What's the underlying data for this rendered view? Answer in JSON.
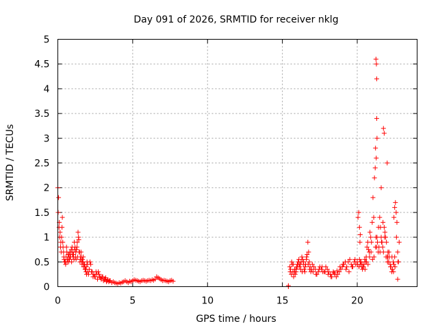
{
  "chart_data": {
    "type": "scatter",
    "title": "Day 091 of 2026, SRMTID for receiver nklg",
    "xlabel": "GPS time / hours",
    "ylabel": "SRMTID / TECUs",
    "xlim": [
      0,
      24
    ],
    "ylim": [
      0,
      5
    ],
    "x_ticks": [
      0,
      5,
      10,
      15,
      20
    ],
    "y_ticks": [
      0,
      0.5,
      1,
      1.5,
      2,
      2.5,
      3,
      3.5,
      4,
      4.5,
      5
    ],
    "x_tick_labels": [
      "0",
      "5",
      "10",
      "15",
      "20"
    ],
    "y_tick_labels": [
      "0",
      "0.5",
      "1",
      "1.5",
      "2",
      "2.5",
      "3",
      "3.5",
      "4",
      "4.5",
      "5"
    ],
    "grid": true,
    "marker": "plus",
    "color": "#ff0000",
    "series": [
      {
        "name": "SRMTID",
        "x": [
          0.0,
          0.05,
          0.1,
          0.15,
          0.2,
          0.25,
          0.3,
          0.35,
          0.4,
          0.45,
          0.5,
          0.55,
          0.6,
          0.65,
          0.7,
          0.75,
          0.8,
          0.85,
          0.9,
          0.95,
          1.0,
          1.05,
          1.1,
          1.15,
          1.2,
          1.25,
          1.3,
          1.35,
          1.4,
          1.45,
          1.5,
          1.55,
          1.6,
          1.65,
          1.7,
          1.75,
          1.8,
          1.85,
          1.9,
          1.95,
          2.0,
          2.1,
          2.2,
          2.3,
          2.4,
          2.5,
          2.6,
          2.7,
          2.8,
          2.9,
          3.0,
          3.1,
          3.2,
          3.3,
          3.4,
          3.5,
          3.6,
          3.7,
          3.8,
          3.9,
          4.0,
          4.1,
          4.2,
          4.3,
          4.4,
          4.5,
          4.6,
          4.7,
          4.8,
          4.9,
          5.0,
          5.1,
          5.2,
          5.3,
          5.4,
          5.5,
          5.6,
          5.7,
          5.8,
          5.9,
          6.0,
          6.1,
          6.2,
          6.3,
          6.4,
          6.5,
          6.6,
          6.7,
          6.8,
          6.9,
          7.0,
          7.1,
          7.2,
          7.3,
          7.4,
          7.5,
          7.6,
          7.7,
          0.02,
          0.08,
          0.12,
          0.18,
          0.22,
          0.28,
          0.33,
          0.38,
          0.42,
          0.48,
          0.52,
          0.58,
          0.62,
          0.68,
          0.72,
          0.78,
          0.82,
          0.88,
          0.92,
          0.98,
          1.02,
          1.08,
          1.12,
          1.18,
          1.22,
          1.28,
          1.32,
          1.38,
          1.42,
          1.48,
          1.52,
          1.58,
          1.62,
          1.68,
          1.72,
          1.78,
          1.82,
          1.88,
          1.92,
          1.98,
          2.05,
          2.15,
          2.25,
          2.35,
          2.45,
          2.55,
          2.65,
          2.75,
          2.85,
          2.95,
          3.05,
          3.15,
          3.25,
          3.35,
          3.45,
          15.4,
          15.4,
          15.5,
          15.55,
          15.6,
          15.65,
          15.7,
          15.75,
          15.8,
          15.85,
          15.9,
          15.95,
          16.0,
          16.05,
          16.1,
          16.15,
          16.2,
          16.25,
          16.3,
          16.35,
          16.4,
          16.45,
          16.5,
          16.55,
          16.6,
          16.65,
          16.7,
          16.75,
          16.8,
          16.85,
          16.9,
          16.95,
          17.0,
          17.1,
          17.2,
          17.3,
          17.4,
          17.5,
          17.6,
          17.7,
          17.8,
          17.9,
          18.0,
          18.1,
          18.2,
          18.3,
          18.4,
          18.5,
          18.6,
          18.7,
          18.8,
          18.9,
          19.0,
          19.1,
          19.2,
          19.3,
          19.4,
          19.5,
          19.6,
          19.7,
          19.8,
          19.9,
          20.0,
          20.05,
          20.1,
          20.15,
          20.2,
          20.25,
          20.3,
          20.35,
          20.4,
          20.45,
          20.5,
          20.55,
          20.6,
          20.65,
          20.7,
          20.75,
          20.8,
          20.85,
          20.9,
          20.95,
          21.0,
          21.05,
          21.1,
          21.15,
          21.2,
          21.25,
          21.3,
          21.35,
          21.4,
          21.45,
          21.5,
          21.55,
          21.6,
          21.65,
          21.7,
          21.75,
          21.8,
          21.85,
          21.9,
          21.95,
          22.0,
          22.05,
          22.1,
          22.15,
          22.2,
          22.25,
          22.3,
          22.35,
          22.4,
          22.45,
          22.5,
          22.55,
          22.6,
          22.65,
          22.7,
          22.75,
          22.8,
          15.52,
          15.62,
          15.72,
          15.82,
          15.92,
          16.02,
          16.12,
          16.22,
          16.32,
          16.42,
          16.52,
          16.62,
          16.72,
          16.82,
          17.05,
          17.25,
          17.45,
          17.65,
          17.85,
          18.05,
          18.25,
          18.45,
          18.65,
          18.85,
          19.05,
          19.25,
          19.45,
          19.65,
          19.85,
          20.02,
          20.12,
          20.22,
          20.32,
          20.42,
          20.52,
          20.62,
          20.72,
          20.82,
          20.92,
          21.02,
          21.12,
          21.22,
          21.32,
          21.42,
          21.52,
          21.62,
          21.72,
          21.82,
          21.92,
          22.02,
          22.12,
          22.22,
          22.32,
          22.42,
          22.52,
          22.62,
          22.72,
          21.25,
          21.28,
          21.3,
          21.3,
          21.32,
          21.27,
          21.22,
          21.75,
          21.8,
          22.0,
          21.6,
          22.5,
          22.45,
          20.15,
          20.2,
          20.18,
          22.7,
          22.05
        ],
        "y": [
          2.0,
          1.8,
          1.3,
          1.1,
          0.9,
          1.0,
          1.4,
          0.8,
          0.6,
          0.5,
          0.5,
          0.6,
          0.7,
          0.55,
          0.6,
          0.65,
          0.7,
          0.6,
          0.75,
          0.8,
          0.7,
          0.65,
          0.9,
          0.8,
          0.7,
          0.75,
          0.9,
          1.1,
          0.95,
          0.7,
          0.6,
          0.7,
          0.5,
          0.55,
          0.6,
          0.45,
          0.4,
          0.35,
          0.4,
          0.5,
          0.3,
          0.35,
          0.45,
          0.3,
          0.25,
          0.2,
          0.25,
          0.3,
          0.2,
          0.15,
          0.2,
          0.15,
          0.18,
          0.12,
          0.1,
          0.12,
          0.08,
          0.1,
          0.08,
          0.07,
          0.06,
          0.08,
          0.07,
          0.09,
          0.1,
          0.12,
          0.1,
          0.08,
          0.11,
          0.1,
          0.12,
          0.14,
          0.13,
          0.12,
          0.11,
          0.1,
          0.12,
          0.13,
          0.12,
          0.11,
          0.12,
          0.13,
          0.12,
          0.14,
          0.13,
          0.15,
          0.2,
          0.18,
          0.16,
          0.14,
          0.12,
          0.13,
          0.12,
          0.11,
          0.1,
          0.12,
          0.13,
          0.11,
          1.5,
          1.2,
          1.0,
          0.8,
          0.7,
          1.2,
          0.9,
          0.7,
          0.55,
          0.5,
          0.45,
          0.8,
          0.5,
          0.65,
          0.5,
          0.55,
          0.6,
          0.7,
          0.5,
          0.65,
          0.6,
          0.55,
          0.75,
          0.6,
          0.55,
          0.8,
          0.6,
          1.0,
          0.7,
          0.5,
          0.55,
          0.6,
          0.45,
          0.5,
          0.4,
          0.45,
          0.35,
          0.3,
          0.25,
          0.45,
          0.25,
          0.5,
          0.3,
          0.2,
          0.2,
          0.3,
          0.15,
          0.25,
          0.18,
          0.2,
          0.12,
          0.15,
          0.1,
          0.14,
          0.12,
          0.02,
          0.0,
          0.4,
          0.35,
          0.25,
          0.45,
          0.3,
          0.2,
          0.3,
          0.25,
          0.35,
          0.4,
          0.45,
          0.5,
          0.55,
          0.4,
          0.45,
          0.5,
          0.6,
          0.55,
          0.45,
          0.35,
          0.3,
          0.45,
          0.55,
          0.65,
          0.9,
          0.7,
          0.5,
          0.4,
          0.3,
          0.35,
          0.45,
          0.4,
          0.35,
          0.25,
          0.3,
          0.4,
          0.35,
          0.3,
          0.3,
          0.4,
          0.35,
          0.3,
          0.25,
          0.2,
          0.3,
          0.25,
          0.2,
          0.25,
          0.3,
          0.35,
          0.4,
          0.45,
          0.5,
          0.4,
          0.5,
          0.55,
          0.45,
          0.4,
          0.5,
          0.45,
          0.5,
          1.4,
          1.5,
          0.55,
          0.45,
          0.5,
          0.4,
          0.35,
          0.4,
          0.45,
          0.55,
          0.5,
          0.6,
          0.8,
          0.9,
          0.75,
          0.7,
          1.1,
          1.0,
          0.9,
          1.3,
          1.8,
          1.4,
          2.2,
          2.4,
          1.0,
          0.8,
          0.9,
          0.7,
          0.8,
          1.4,
          1.2,
          1.0,
          0.9,
          0.8,
          0.7,
          1.2,
          1.1,
          1.0,
          0.9,
          0.6,
          0.7,
          0.5,
          0.6,
          0.45,
          0.4,
          0.3,
          0.35,
          0.5,
          0.45,
          0.6,
          1.7,
          1.5,
          1.3,
          0.7,
          0.5,
          0.9,
          0.3,
          0.5,
          0.45,
          0.35,
          0.3,
          0.4,
          0.45,
          0.35,
          0.3,
          0.5,
          0.4,
          0.6,
          0.45,
          0.35,
          0.3,
          0.25,
          0.35,
          0.4,
          0.3,
          0.25,
          0.2,
          0.28,
          0.32,
          0.4,
          0.45,
          0.35,
          0.3,
          0.4,
          0.55,
          0.45,
          0.4,
          0.5,
          0.45,
          0.4,
          0.35,
          0.5,
          0.45,
          0.6,
          0.7,
          0.55,
          0.6,
          0.8,
          1.0,
          1.2,
          0.7,
          0.9,
          1.3,
          1.0,
          0.6,
          0.5,
          0.7,
          0.4,
          0.6,
          0.3,
          0.4,
          1.0,
          0.5,
          4.6,
          4.5,
          4.2,
          3.4,
          3.0,
          2.6,
          2.8,
          3.2,
          3.1,
          2.5,
          2.0,
          1.6,
          1.4,
          1.2,
          1.05,
          0.9,
          0.15,
          0.6
        ]
      }
    ]
  }
}
